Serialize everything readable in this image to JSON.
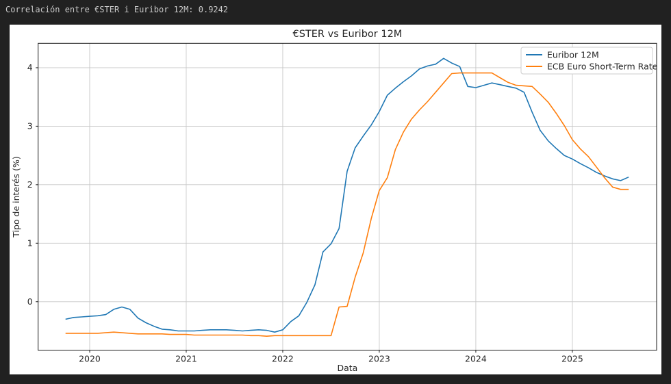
{
  "terminal": {
    "output_line": "Correlación entre €STER i Euribor 12M: 0.9242",
    "correlation_value": "0.9242"
  },
  "colors": {
    "background": "#212121",
    "terminal_text": "#c9c9c9",
    "figure_bg": "#ffffff",
    "grid": "#c8c8c8",
    "axis": "#1a1a1a",
    "axis_text": "#262626",
    "euribor": "#1f77b4",
    "ester": "#ff7f0e"
  },
  "chart_data": {
    "type": "line",
    "title": "€STER vs Euribor 12M",
    "xlabel": "Data",
    "ylabel": "Tipo de interés (%)",
    "grid": true,
    "legend_position": "upper right",
    "x_ticks": [
      2020,
      2021,
      2022,
      2023,
      2024,
      2025
    ],
    "y_ticks": [
      0,
      1,
      2,
      3,
      4
    ],
    "xlim": [
      2019.466,
      2025.873
    ],
    "ylim": [
      -0.83,
      4.417
    ],
    "start_month": "2019-10",
    "frequency": "monthly",
    "x_start_year": 2019.75,
    "x_step_years": 0.0833333,
    "series": [
      {
        "name": "Euribor 12M",
        "color_key": "euribor",
        "values": [
          -0.3,
          -0.27,
          -0.26,
          -0.25,
          -0.24,
          -0.22,
          -0.13,
          -0.09,
          -0.13,
          -0.28,
          -0.36,
          -0.42,
          -0.47,
          -0.48,
          -0.5,
          -0.5,
          -0.5,
          -0.49,
          -0.48,
          -0.48,
          -0.48,
          -0.49,
          -0.5,
          -0.49,
          -0.48,
          -0.49,
          -0.52,
          -0.48,
          -0.34,
          -0.24,
          -0.01,
          0.29,
          0.85,
          0.99,
          1.25,
          2.23,
          2.63,
          2.83,
          3.02,
          3.25,
          3.53,
          3.65,
          3.76,
          3.86,
          3.98,
          4.03,
          4.06,
          4.16,
          4.08,
          4.02,
          3.68,
          3.66,
          3.7,
          3.74,
          3.71,
          3.68,
          3.65,
          3.58,
          3.24,
          2.93,
          2.75,
          2.62,
          2.5,
          2.44,
          2.36,
          2.29,
          2.21,
          2.15,
          2.1,
          2.07,
          2.13
        ]
      },
      {
        "name": "ECB Euro Short-Term Rate",
        "color_key": "ester",
        "values": [
          -0.54,
          -0.54,
          -0.54,
          -0.54,
          -0.54,
          -0.53,
          -0.52,
          -0.53,
          -0.54,
          -0.55,
          -0.55,
          -0.55,
          -0.55,
          -0.56,
          -0.56,
          -0.56,
          -0.57,
          -0.57,
          -0.57,
          -0.57,
          -0.57,
          -0.57,
          -0.57,
          -0.58,
          -0.58,
          -0.59,
          -0.58,
          -0.58,
          -0.58,
          -0.58,
          -0.58,
          -0.58,
          -0.58,
          -0.58,
          -0.09,
          -0.08,
          0.42,
          0.83,
          1.42,
          1.9,
          2.12,
          2.6,
          2.9,
          3.12,
          3.28,
          3.42,
          3.58,
          3.74,
          3.9,
          3.91,
          3.91,
          3.91,
          3.91,
          3.91,
          3.83,
          3.75,
          3.7,
          3.69,
          3.68,
          3.55,
          3.41,
          3.22,
          3.01,
          2.77,
          2.61,
          2.48,
          2.3,
          2.12,
          1.96,
          1.92,
          1.92
        ]
      }
    ]
  }
}
